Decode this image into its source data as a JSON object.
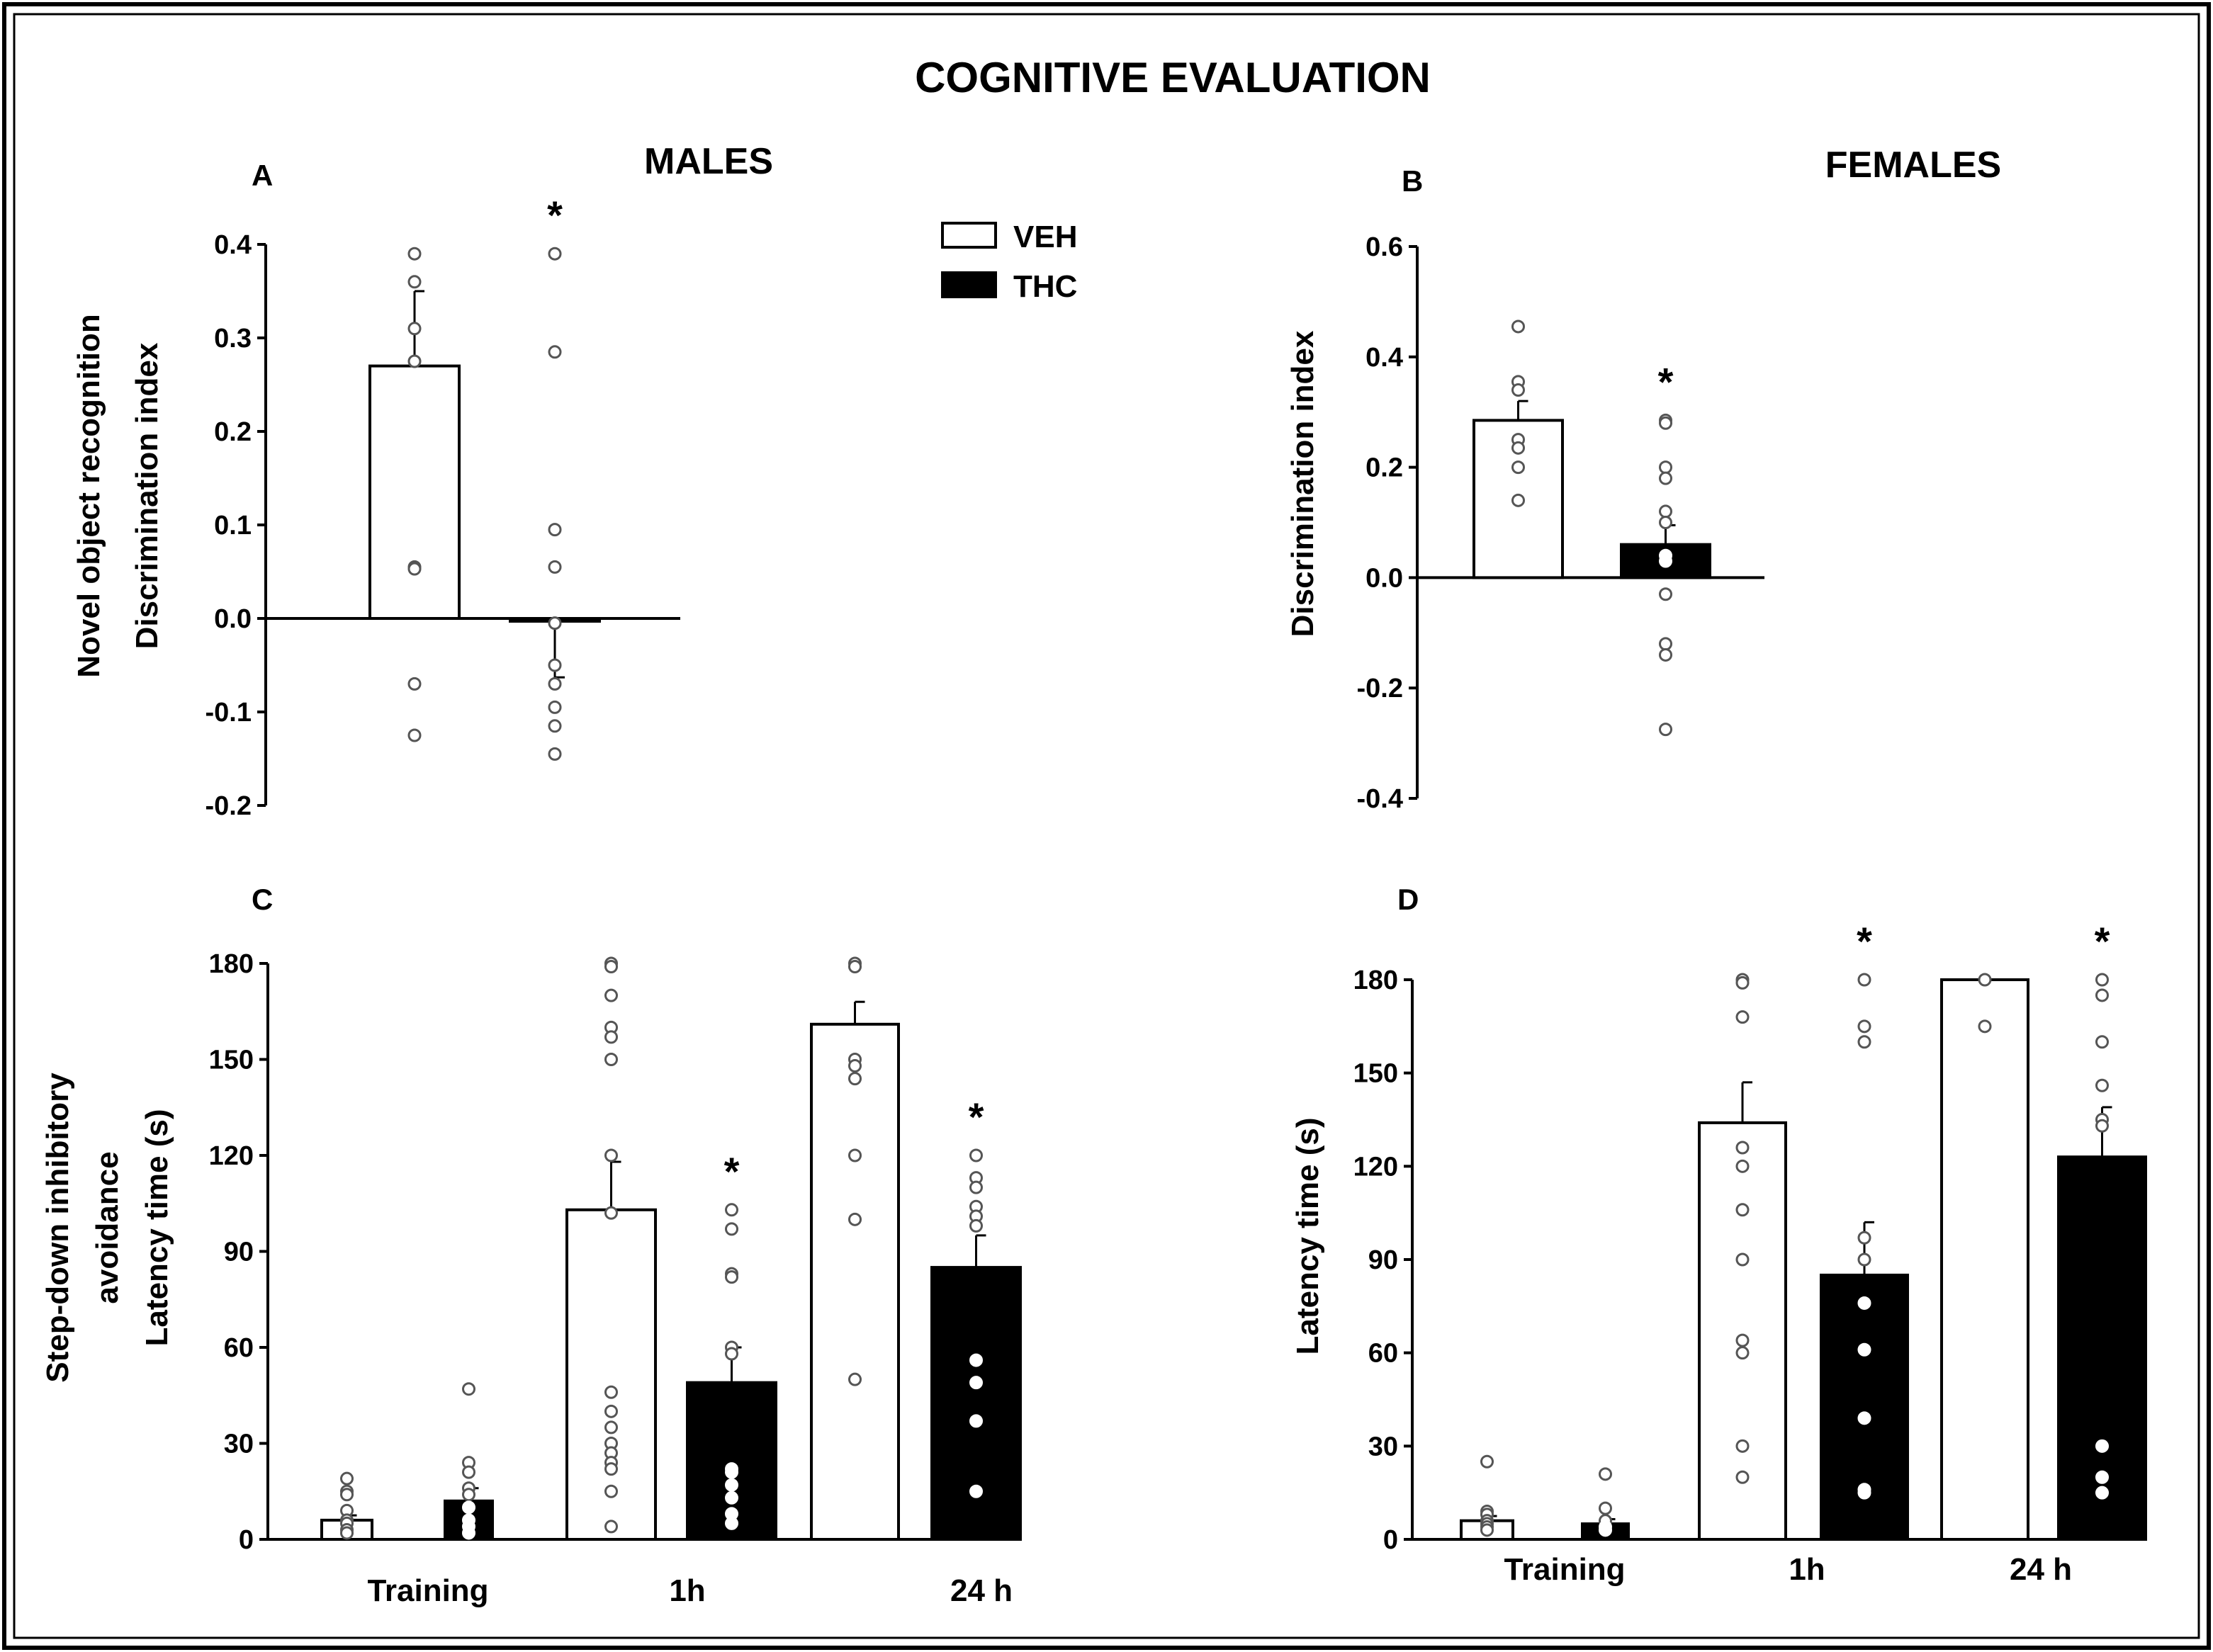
{
  "main_title": "COGNITIVE EVALUATION",
  "legend": {
    "veh": "VEH",
    "thc": "THC"
  },
  "colors": {
    "veh_fill": "#ffffff",
    "thc_fill": "#000000",
    "outline": "#000000"
  },
  "chart_data": [
    {
      "id": "A",
      "panel_label": "A",
      "group_title": "MALES",
      "type": "bar",
      "ylabel_lines": [
        "Novel object recognition",
        "Discrimination index"
      ],
      "ylim": [
        -0.2,
        0.4
      ],
      "yticks": [
        -0.2,
        -0.1,
        0.0,
        0.1,
        0.2,
        0.3,
        0.4
      ],
      "ytick_labels": [
        "-0.2",
        "-0.1",
        "0.0",
        "0.1",
        "0.2",
        "0.3",
        "0.4"
      ],
      "categories": [
        ""
      ],
      "series": [
        {
          "name": "VEH",
          "values": [
            0.27
          ],
          "sem": [
            0.08
          ],
          "points": [
            [
              0.39,
              0.36,
              0.31,
              0.275,
              0.055,
              0.053,
              -0.07,
              -0.125
            ]
          ]
        },
        {
          "name": "THC",
          "values": [
            -0.003
          ],
          "sem": [
            0.06
          ],
          "points": [
            [
              0.39,
              0.285,
              0.095,
              0.055,
              -0.005,
              -0.05,
              -0.07,
              -0.095,
              -0.115,
              -0.145
            ]
          ]
        }
      ],
      "significance": [
        {
          "category": 0,
          "series": 1,
          "label": "*"
        }
      ]
    },
    {
      "id": "B",
      "panel_label": "B",
      "group_title": "FEMALES",
      "type": "bar",
      "ylabel_lines": [
        "Discrimination index"
      ],
      "ylim": [
        -0.4,
        0.6
      ],
      "yticks": [
        -0.4,
        -0.2,
        0.0,
        0.2,
        0.4,
        0.6
      ],
      "ytick_labels": [
        "-0.4",
        "-0.2",
        "0.0",
        "0.2",
        "0.4",
        "0.6"
      ],
      "categories": [
        ""
      ],
      "series": [
        {
          "name": "VEH",
          "values": [
            0.285
          ],
          "sem": [
            0.035
          ],
          "points": [
            [
              0.455,
              0.355,
              0.34,
              0.25,
              0.235,
              0.2,
              0.14
            ]
          ]
        },
        {
          "name": "THC",
          "values": [
            0.06
          ],
          "sem": [
            0.035
          ],
          "points": [
            [
              0.285,
              0.28,
              0.2,
              0.18,
              0.12,
              0.1,
              0.04,
              0.03,
              -0.03,
              -0.12,
              -0.14,
              -0.275
            ]
          ]
        }
      ],
      "significance": [
        {
          "category": 0,
          "series": 1,
          "label": "*"
        }
      ]
    },
    {
      "id": "C",
      "panel_label": "C",
      "group_title": "",
      "type": "bar",
      "ylabel_lines": [
        "Step-down inhibitory",
        "avoidance",
        "Latency time (s)"
      ],
      "ylim": [
        0,
        180
      ],
      "yticks": [
        0,
        30,
        60,
        90,
        120,
        150,
        180
      ],
      "ytick_labels": [
        "0",
        "30",
        "60",
        "90",
        "120",
        "150",
        "180"
      ],
      "categories": [
        "Training",
        "1h",
        "24 h"
      ],
      "series": [
        {
          "name": "VEH",
          "values": [
            6,
            103,
            161
          ],
          "sem": [
            1.5,
            15,
            7
          ],
          "points": [
            [
              19,
              15,
              14,
              9,
              6,
              5,
              3,
              2
            ],
            [
              180,
              179,
              170,
              160,
              157,
              150,
              120,
              102,
              46,
              40,
              35,
              30,
              27,
              24,
              22,
              15,
              4
            ],
            [
              180,
              179,
              150,
              148,
              144,
              120,
              100,
              50
            ]
          ]
        },
        {
          "name": "THC",
          "values": [
            12,
            49,
            85
          ],
          "sem": [
            4,
            11,
            10
          ],
          "points": [
            [
              47,
              24,
              21,
              16,
              14,
              10,
              6,
              4,
              2
            ],
            [
              103,
              97,
              83,
              82,
              60,
              58,
              22,
              21,
              17,
              13,
              8,
              5
            ],
            [
              120,
              113,
              110,
              104,
              101,
              98,
              56,
              49,
              37,
              15
            ]
          ]
        }
      ],
      "significance": [
        {
          "category": 1,
          "series": 1,
          "label": "*"
        },
        {
          "category": 2,
          "series": 1,
          "label": "*"
        }
      ]
    },
    {
      "id": "D",
      "panel_label": "D",
      "group_title": "",
      "type": "bar",
      "ylabel_lines": [
        "Latency time (s)"
      ],
      "ylim": [
        0,
        180
      ],
      "yticks": [
        0,
        30,
        60,
        90,
        120,
        150,
        180
      ],
      "ytick_labels": [
        "0",
        "30",
        "60",
        "90",
        "120",
        "150",
        "180"
      ],
      "categories": [
        "Training",
        "1h",
        "24 h"
      ],
      "series": [
        {
          "name": "VEH",
          "values": [
            6,
            134,
            180
          ],
          "sem": [
            1.5,
            13,
            0
          ],
          "points": [
            [
              25,
              9,
              8,
              6,
              5,
              4,
              3
            ],
            [
              180,
              179,
              168,
              126,
              120,
              106,
              90,
              64,
              60,
              30,
              20
            ],
            [
              180,
              165
            ]
          ]
        },
        {
          "name": "THC",
          "values": [
            5,
            85,
            123
          ],
          "sem": [
            1.5,
            17,
            16
          ],
          "points": [
            [
              21,
              10,
              6,
              4,
              3
            ],
            [
              180,
              165,
              160,
              97,
              90,
              76,
              61,
              39,
              16,
              15
            ],
            [
              180,
              175,
              160,
              146,
              135,
              133,
              30,
              20,
              15
            ]
          ]
        }
      ],
      "significance": [
        {
          "category": 1,
          "series": 1,
          "label": "*"
        },
        {
          "category": 2,
          "series": 1,
          "label": "*"
        }
      ]
    }
  ]
}
